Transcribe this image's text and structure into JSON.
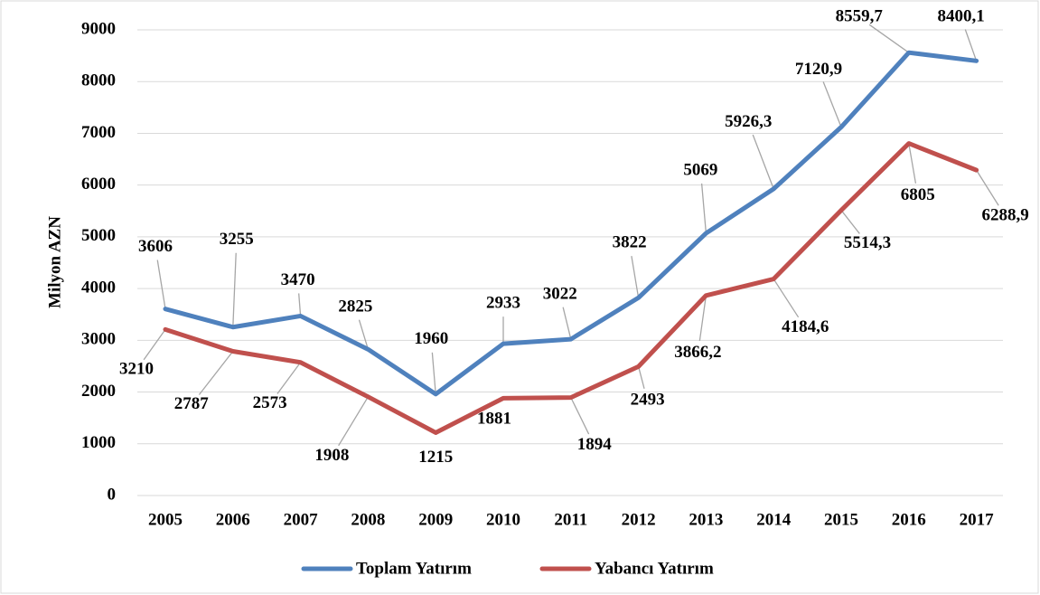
{
  "chart_data": {
    "type": "line",
    "y_label": "Milyon AZN",
    "categories": [
      "2005",
      "2006",
      "2007",
      "2008",
      "2009",
      "2010",
      "2011",
      "2012",
      "2013",
      "2014",
      "2015",
      "2016",
      "2017"
    ],
    "series": [
      {
        "name": "Toplam Yatırım",
        "color": "#4f81bd",
        "values": [
          3606,
          3255,
          3470,
          2825,
          1960,
          2933,
          3022,
          3822,
          5069,
          5926.3,
          7120.9,
          8559.7,
          8400.1
        ],
        "value_labels": [
          "3606",
          "3255",
          "3470",
          "2825",
          "1960",
          "2933",
          "3022",
          "3822",
          "5069",
          "5926,3",
          "7120,9",
          "8559,7",
          "8400,1"
        ]
      },
      {
        "name": "Yabancı Yatırım",
        "color": "#c0504d",
        "values": [
          3210,
          2787,
          2573,
          1908,
          1215,
          1881,
          1894,
          2493,
          3866.2,
          4184.6,
          5514.3,
          6805,
          6288.9
        ],
        "value_labels": [
          "3210",
          "2787",
          "2573",
          "1908",
          "1215",
          "1881",
          "1894",
          "2493",
          "3866,2",
          "4184,6",
          "5514,3",
          "6805",
          "6288,9"
        ]
      }
    ],
    "ylim": [
      0,
      9000
    ],
    "yticks": [
      0,
      1000,
      2000,
      3000,
      4000,
      5000,
      6000,
      7000,
      8000,
      9000
    ],
    "grid": true,
    "legend": "bottom"
  }
}
